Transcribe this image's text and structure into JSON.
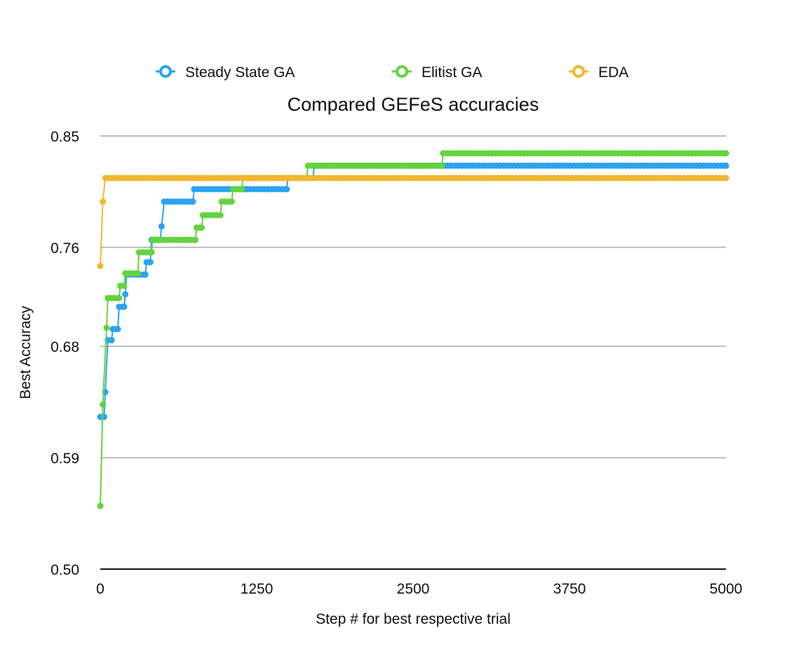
{
  "chart_data": {
    "type": "line",
    "title": "Compared GEFeS accuracies",
    "xlabel": "Step # for best respective trial",
    "ylabel": "Best Accuracy",
    "xlim": [
      0,
      5000
    ],
    "ylim": [
      0.5,
      0.86
    ],
    "xticks": [
      0,
      1250,
      2500,
      3750,
      5000
    ],
    "xtick_labels": [
      "0",
      "1250",
      "2500",
      "3750",
      "5000"
    ],
    "yticks": [
      0.5,
      0.59,
      0.68,
      0.76,
      0.85
    ],
    "ytick_labels": [
      "0.50",
      "0.59",
      "0.68",
      "0.76",
      "0.85"
    ],
    "grid": true,
    "legend_position": "top",
    "series": [
      {
        "name": "Steady State GA",
        "color": "#2BA3EF",
        "points": [
          [
            0,
            0.623
          ],
          [
            30,
            0.623
          ],
          [
            40,
            0.643
          ],
          [
            60,
            0.685
          ],
          [
            90,
            0.685
          ],
          [
            100,
            0.694
          ],
          [
            140,
            0.694
          ],
          [
            150,
            0.712
          ],
          [
            190,
            0.712
          ],
          [
            200,
            0.722
          ],
          [
            210,
            0.738
          ],
          [
            360,
            0.738
          ],
          [
            370,
            0.748
          ],
          [
            400,
            0.748
          ],
          [
            410,
            0.766
          ],
          [
            480,
            0.766
          ],
          [
            490,
            0.777
          ],
          [
            510,
            0.797
          ],
          [
            740,
            0.797
          ],
          [
            750,
            0.807
          ],
          [
            1490,
            0.807
          ],
          [
            1500,
            0.816
          ],
          [
            1700,
            0.816
          ],
          [
            1710,
            0.826
          ],
          [
            5000,
            0.826
          ]
        ]
      },
      {
        "name": "Elitist GA",
        "color": "#63D33E",
        "points": [
          [
            0,
            0.551
          ],
          [
            20,
            0.633
          ],
          [
            50,
            0.695
          ],
          [
            60,
            0.719
          ],
          [
            150,
            0.719
          ],
          [
            160,
            0.729
          ],
          [
            190,
            0.729
          ],
          [
            200,
            0.739
          ],
          [
            300,
            0.739
          ],
          [
            310,
            0.756
          ],
          [
            410,
            0.756
          ],
          [
            420,
            0.766
          ],
          [
            760,
            0.766
          ],
          [
            770,
            0.776
          ],
          [
            810,
            0.776
          ],
          [
            820,
            0.786
          ],
          [
            960,
            0.786
          ],
          [
            970,
            0.797
          ],
          [
            1050,
            0.797
          ],
          [
            1060,
            0.807
          ],
          [
            1130,
            0.807
          ],
          [
            1140,
            0.816
          ],
          [
            1650,
            0.816
          ],
          [
            1660,
            0.826
          ],
          [
            2730,
            0.826
          ],
          [
            2740,
            0.836
          ],
          [
            5000,
            0.836
          ]
        ]
      },
      {
        "name": "EDA",
        "color": "#F4B630",
        "points": [
          [
            0,
            0.745
          ],
          [
            20,
            0.797
          ],
          [
            40,
            0.816
          ],
          [
            5000,
            0.816
          ]
        ]
      }
    ]
  }
}
